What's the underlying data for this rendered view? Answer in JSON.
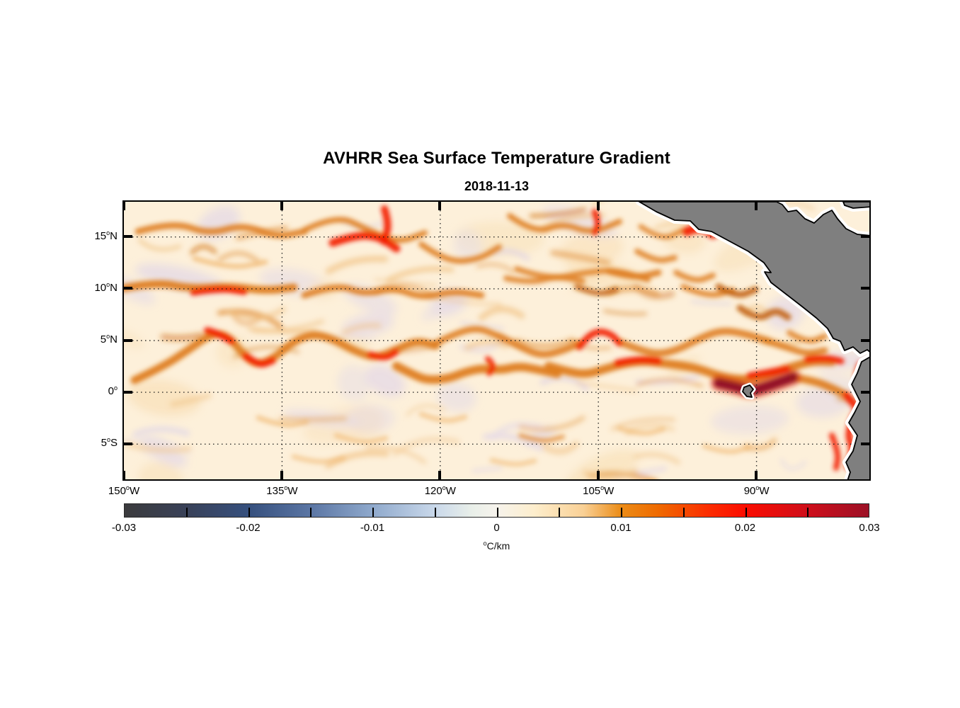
{
  "title": "AVHRR Sea Surface Temperature Gradient",
  "date": "2018-11-13",
  "chart_data": {
    "type": "heatmap",
    "title": "AVHRR Sea Surface Temperature Gradient",
    "subtitle": "2018-11-13",
    "grid": "dotted",
    "x_axis": {
      "kind": "longitude",
      "range_deg_w": [
        150,
        79.3
      ],
      "tick_lon_w": [
        150,
        135,
        120,
        105,
        90
      ],
      "tick_labels": [
        {
          "deg": "150",
          "suf": "W"
        },
        {
          "deg": "135",
          "suf": "W"
        },
        {
          "deg": "120",
          "suf": "W"
        },
        {
          "deg": "105",
          "suf": "W"
        },
        {
          "deg": "90",
          "suf": "W"
        }
      ]
    },
    "y_axis": {
      "kind": "latitude",
      "range_deg_n": [
        18.4,
        -8.4
      ],
      "tick_lat": [
        15,
        10,
        5,
        0,
        -5
      ],
      "tick_labels": [
        {
          "deg": "15",
          "suf": "N"
        },
        {
          "deg": "10",
          "suf": "N"
        },
        {
          "deg": "5",
          "suf": "N"
        },
        {
          "deg": "0",
          "suf": ""
        },
        {
          "deg": "5",
          "suf": "S"
        }
      ]
    },
    "colorbar": {
      "range": [
        -0.03,
        0.03
      ],
      "major_tick_values": [
        -0.03,
        -0.02,
        -0.01,
        0,
        0.01,
        0.02,
        0.03
      ],
      "major_tick_labels": [
        "-0.03",
        "-0.02",
        "-0.01",
        "0",
        "0.01",
        "0.02",
        "0.03"
      ],
      "minor_tick_step": 0.005,
      "units": "C/km",
      "units_prefix_degree": true,
      "colormap_stops": [
        [
          0.0,
          "#3b3b3d"
        ],
        [
          0.083,
          "#394158"
        ],
        [
          0.167,
          "#36507e"
        ],
        [
          0.25,
          "#5b76a4"
        ],
        [
          0.333,
          "#8fa9cc"
        ],
        [
          0.417,
          "#c9d8ea"
        ],
        [
          0.467,
          "#e9efe9"
        ],
        [
          0.5,
          "#f6f3ec"
        ],
        [
          0.55,
          "#fdeecd"
        ],
        [
          0.617,
          "#f9d095"
        ],
        [
          0.667,
          "#eb8c17"
        ],
        [
          0.717,
          "#ef6a00"
        ],
        [
          0.783,
          "#fb2e00"
        ],
        [
          0.833,
          "#fb0d00"
        ],
        [
          0.917,
          "#cf0e1a"
        ],
        [
          1.0,
          "#9c1126"
        ]
      ]
    },
    "features": [
      {
        "name": "equatorial-front",
        "desc": "Strong SST gradient band (red, ~0.02 °C/km) meandering along 0–3°N from ~128°W to South America; maximum (dark red, >0.025 °C/km) just north of the Galápagos Islands near 92–89°W"
      },
      {
        "name": "north-tropical-fronts",
        "desc": "Wavy moderate-gradient filaments (orange, ~0.01 °C/km) near 10°N and 5°N spanning the basin; red cores near 138°W/10°N and 130–125°W/5–6°N"
      },
      {
        "name": "tehuantepec-front",
        "desc": "Strong coastal gradient patch (red) at the Gulf of Tehuantepec, ~96°W 15.5°N"
      },
      {
        "name": "peru-coastal-upwelling",
        "desc": "Strong gradient streaks (red) along the Ecuador/Peru coast from the equator to ~8°S"
      },
      {
        "name": "background",
        "desc": "Weak gradients 0–0.005 °C/km (cream) with scattered slightly negative patches (pale violet), quietest south of the equator west of 100°W"
      }
    ],
    "land_masses": [
      "Mexico and Central America",
      "South America (Ecuador / Peru)",
      "Galápagos Islands"
    ]
  },
  "map": {
    "ocean_color": "#fdf0da",
    "land_color": "#7f7f7f",
    "coast_color": "#000000",
    "coast_buffer_color": "#ffffff",
    "grid_color": "#1a1a1a",
    "palette": {
      "f": "#f0b46a",
      "o": "#de7c1c",
      "d": "#c2610a",
      "r": "#f21d00",
      "g": "#e0300e",
      "k": "#8f1021",
      "lav": "#e6dbe5",
      "peach": "#f9e2bd"
    },
    "texture": {
      "seed": 7,
      "squiggles": 72,
      "blobs": 38
    },
    "filaments": [
      {
        "c": "f",
        "w": 7,
        "op": 0.7,
        "p": [
          100,
          80,
          150,
          95,
          200,
          85
        ]
      },
      {
        "c": "f",
        "w": 7,
        "op": 0.65,
        "p": [
          190,
          305,
          225,
          318,
          258,
          311
        ]
      },
      {
        "c": "f",
        "w": 7,
        "op": 0.6,
        "p": [
          300,
          330,
          335,
          342,
          370,
          334
        ]
      },
      {
        "c": "f",
        "w": 7,
        "op": 0.6,
        "p": [
          420,
          300,
          452,
          312,
          482,
          304
        ]
      },
      {
        "c": "f",
        "w": 7,
        "op": 0.6,
        "p": [
          700,
          320,
          732,
          330,
          762,
          321
        ]
      },
      {
        "c": "f",
        "w": 7,
        "op": 0.6,
        "p": [
          820,
          345,
          852,
          356,
          882,
          347
        ]
      },
      {
        "c": "f",
        "w": 7,
        "op": 0.55,
        "p": [
          240,
          360,
          275,
          370,
          310,
          362
        ]
      },
      {
        "c": "f",
        "w": 7,
        "op": 0.55,
        "p": [
          520,
          365,
          550,
          373,
          580,
          366
        ]
      },
      {
        "c": "o",
        "w": 9,
        "op": 0.9,
        "p": [
          20,
          42,
          70,
          28,
          120,
          46,
          168,
          32,
          215,
          50,
          255,
          42
        ]
      },
      {
        "c": "o",
        "w": 8,
        "op": 0.9,
        "p": [
          255,
          40,
          300,
          18,
          345,
          40,
          388,
          58,
          425,
          44
        ]
      },
      {
        "c": "o",
        "w": 8,
        "op": 0.9,
        "p": [
          420,
          60,
          455,
          85,
          500,
          82,
          530,
          64
        ]
      },
      {
        "c": "o",
        "w": 8,
        "op": 0.9,
        "p": [
          545,
          20,
          580,
          45,
          620,
          30,
          660,
          45,
          700,
          28
        ]
      },
      {
        "c": "o",
        "w": 7,
        "op": 0.85,
        "p": [
          730,
          35,
          760,
          55,
          790,
          40
        ]
      },
      {
        "c": "o",
        "w": 8,
        "op": 0.85,
        "p": [
          555,
          95,
          600,
          110,
          650,
          100,
          695,
          96,
          740,
          110
        ]
      },
      {
        "c": "o",
        "w": 11,
        "op": 0.95,
        "p": [
          0,
          122,
          45,
          113,
          95,
          123,
          150,
          119,
          200,
          126,
          240,
          121
        ]
      },
      {
        "c": "o",
        "w": 9,
        "op": 0.9,
        "p": [
          255,
          132,
          300,
          116,
          340,
          131,
          382,
          121,
          420,
          136,
          465,
          126,
          505,
          132
        ]
      },
      {
        "c": "o",
        "w": 8,
        "op": 0.85,
        "p": [
          540,
          108,
          575,
          115,
          610,
          105,
          648,
          112
        ]
      },
      {
        "c": "o",
        "w": 9,
        "op": 0.9,
        "p": [
          685,
          98,
          720,
          108,
          755,
          100
        ]
      },
      {
        "c": "o",
        "w": 8,
        "op": 0.85,
        "p": [
          790,
          120,
          825,
          135,
          860,
          125
        ]
      },
      {
        "c": "o",
        "w": 8,
        "op": 0.85,
        "p": [
          940,
          185,
          965,
          200,
          990,
          190
        ]
      },
      {
        "c": "o",
        "w": 11,
        "op": 0.95,
        "p": [
          15,
          252,
          55,
          233,
          90,
          210,
          125,
          185,
          148,
          190,
          168,
          215,
          188,
          231,
          212,
          221,
          237,
          199,
          266,
          186,
          296,
          194,
          326,
          211,
          356,
          221,
          386,
          208,
          414,
          196,
          440,
          203
        ]
      },
      {
        "c": "o",
        "w": 9,
        "op": 0.9,
        "p": [
          440,
          200,
          470,
          185,
          500,
          178,
          525,
          188
        ]
      },
      {
        "c": "o",
        "w": 10,
        "op": 0.9,
        "p": [
          530,
          190,
          560,
          205,
          590,
          218,
          620,
          210,
          643,
          200
        ]
      },
      {
        "c": "o",
        "w": 10,
        "op": 0.9,
        "p": [
          700,
          198,
          725,
          208,
          755,
          216,
          785,
          208,
          815,
          192,
          845,
          181,
          880,
          187,
          910,
          197
        ]
      },
      {
        "c": "o",
        "w": 9,
        "op": 0.9,
        "p": [
          910,
          197,
          940,
          207,
          965,
          215,
          990,
          210
        ]
      },
      {
        "c": "o",
        "w": 12,
        "op": 0.95,
        "p": [
          385,
          232,
          412,
          246,
          430,
          252,
          458,
          250,
          483,
          240,
          508,
          235,
          532,
          238,
          558,
          232,
          585,
          237,
          612,
          243
        ]
      },
      {
        "c": "o",
        "w": 12,
        "op": 0.95,
        "p": [
          600,
          232,
          627,
          240,
          653,
          244,
          680,
          236,
          708,
          228,
          735,
          225,
          760,
          228,
          787,
          231,
          813,
          236,
          840,
          246,
          867,
          251,
          893,
          250,
          920,
          241,
          947,
          232,
          973,
          225,
          1000,
          226
        ]
      },
      {
        "c": "o",
        "w": 11,
        "op": 0.95,
        "p": [
          945,
          248,
          975,
          253,
          1000,
          263,
          1020,
          273
        ]
      },
      {
        "c": "o",
        "w": 8,
        "op": 0.85,
        "p": [
          725,
          70,
          752,
          85,
          778,
          79
        ]
      },
      {
        "c": "o",
        "w": 8,
        "op": 0.85,
        "p": [
          780,
          100,
          806,
          114,
          832,
          104
        ]
      },
      {
        "c": "o",
        "w": 6,
        "op": 0.7,
        "p": [
          560,
          330,
          590,
          340,
          620,
          332
        ]
      },
      {
        "c": "d",
        "w": 9,
        "op": 0.9,
        "p": [
          870,
          150,
          896,
          168,
          920,
          152,
          938,
          163
        ]
      },
      {
        "c": "d",
        "w": 9,
        "op": 0.9,
        "p": [
          840,
          120,
          866,
          135,
          892,
          124
        ]
      },
      {
        "c": "d",
        "w": 8,
        "op": 0.85,
        "p": [
          640,
          120,
          668,
          132,
          695,
          124
        ]
      },
      {
        "c": "r",
        "w": 10,
        "op": 0.95,
        "p": [
          368,
          10,
          375,
          32,
          367,
          56
        ]
      },
      {
        "c": "r",
        "w": 11,
        "op": 0.95,
        "p": [
          295,
          58,
          330,
          46,
          362,
          50,
          385,
          66
        ]
      },
      {
        "c": "r",
        "w": 8,
        "op": 0.95,
        "p": [
          665,
          14,
          671,
          30,
          665,
          44
        ]
      },
      {
        "c": "r",
        "w": 13,
        "op": 0.95,
        "p": [
          795,
          42,
          815,
          34,
          832,
          46
        ]
      },
      {
        "c": "r",
        "w": 9,
        "op": 0.95,
        "p": [
          98,
          128,
          135,
          122,
          170,
          127
        ]
      },
      {
        "c": "r",
        "w": 10,
        "op": 0.95,
        "p": [
          118,
          182,
          138,
          188,
          152,
          197
        ]
      },
      {
        "c": "r",
        "w": 10,
        "op": 0.95,
        "p": [
          172,
          218,
          190,
          232,
          210,
          224
        ]
      },
      {
        "c": "r",
        "w": 9,
        "op": 0.95,
        "p": [
          348,
          216,
          368,
          222,
          384,
          212
        ]
      },
      {
        "c": "r",
        "w": 8,
        "op": 0.9,
        "p": [
          514,
          222,
          524,
          232,
          516,
          242
        ]
      },
      {
        "c": "r",
        "w": 9,
        "op": 0.95,
        "p": [
          643,
          205,
          655,
          190,
          672,
          182,
          690,
          188,
          700,
          200
        ]
      },
      {
        "c": "r",
        "w": 10,
        "op": 0.95,
        "p": [
          697,
          228,
          725,
          222,
          755,
          225
        ]
      },
      {
        "c": "r",
        "w": 10,
        "op": 0.95,
        "p": [
          884,
          246,
          912,
          241,
          937,
          236
        ]
      },
      {
        "c": "r",
        "w": 9,
        "op": 0.95,
        "p": [
          965,
          223,
          990,
          220,
          1013,
          225
        ]
      },
      {
        "c": "r",
        "w": 9,
        "op": 0.9,
        "p": [
          1040,
          230,
          1034,
          248,
          1042,
          262
        ]
      },
      {
        "c": "r",
        "w": 10,
        "op": 0.95,
        "p": [
          1020,
          273,
          1032,
          286,
          1040,
          300
        ]
      },
      {
        "c": "r",
        "w": 9,
        "op": 0.95,
        "p": [
          1032,
          300,
          1021,
          325,
          1030,
          350,
          1022,
          374
        ]
      },
      {
        "c": "r",
        "w": 8,
        "op": 0.9,
        "p": [
          1000,
          330,
          1010,
          355,
          1006,
          376
        ]
      },
      {
        "c": "g",
        "w": 24,
        "op": 0.5,
        "p": [
          840,
          256,
          868,
          262,
          885,
          268,
          905,
          262,
          928,
          254,
          945,
          248
        ]
      },
      {
        "c": "k",
        "w": 14,
        "op": 0.95,
        "p": [
          840,
          256,
          868,
          262,
          885,
          268,
          905,
          262,
          928,
          254,
          945,
          248
        ]
      }
    ],
    "land_polygons": {
      "central_america": [
        [
          728,
          0
        ],
        [
          752,
          14
        ],
        [
          778,
          26
        ],
        [
          800,
          27
        ],
        [
          812,
          39
        ],
        [
          830,
          42
        ],
        [
          856,
          56
        ],
        [
          882,
          70
        ],
        [
          904,
          86
        ],
        [
          914,
          100
        ],
        [
          905,
          99
        ],
        [
          914,
          114
        ],
        [
          936,
          131
        ],
        [
          958,
          148
        ],
        [
          978,
          164
        ],
        [
          994,
          179
        ],
        [
          1002,
          193
        ],
        [
          1012,
          197
        ],
        [
          1018,
          210
        ],
        [
          1030,
          205
        ],
        [
          1040,
          214
        ],
        [
          1050,
          209
        ],
        [
          1056,
          214
        ],
        [
          1056,
          48
        ],
        [
          1036,
          46
        ],
        [
          1020,
          38
        ],
        [
          1008,
          24
        ],
        [
          1000,
          12
        ],
        [
          988,
          18
        ],
        [
          975,
          30
        ],
        [
          962,
          24
        ],
        [
          950,
          12
        ],
        [
          938,
          14
        ],
        [
          930,
          4
        ],
        [
          922,
          0
        ]
      ],
      "caribbean_sliver": [
        [
          1016,
          0
        ],
        [
          1056,
          0
        ],
        [
          1056,
          7
        ],
        [
          1030,
          9
        ],
        [
          1018,
          5
        ]
      ],
      "south_america": [
        [
          1056,
          218
        ],
        [
          1042,
          226
        ],
        [
          1036,
          242
        ],
        [
          1028,
          258
        ],
        [
          1040,
          282
        ],
        [
          1032,
          298
        ],
        [
          1024,
          312
        ],
        [
          1036,
          330
        ],
        [
          1030,
          352
        ],
        [
          1020,
          368
        ],
        [
          1026,
          382
        ],
        [
          1022,
          394
        ],
        [
          1056,
          394
        ]
      ],
      "galapagos": [
        [
          876,
          262
        ],
        [
          884,
          259
        ],
        [
          889,
          265
        ],
        [
          885,
          270
        ],
        [
          887,
          276
        ],
        [
          880,
          275
        ],
        [
          874,
          268
        ]
      ]
    }
  }
}
